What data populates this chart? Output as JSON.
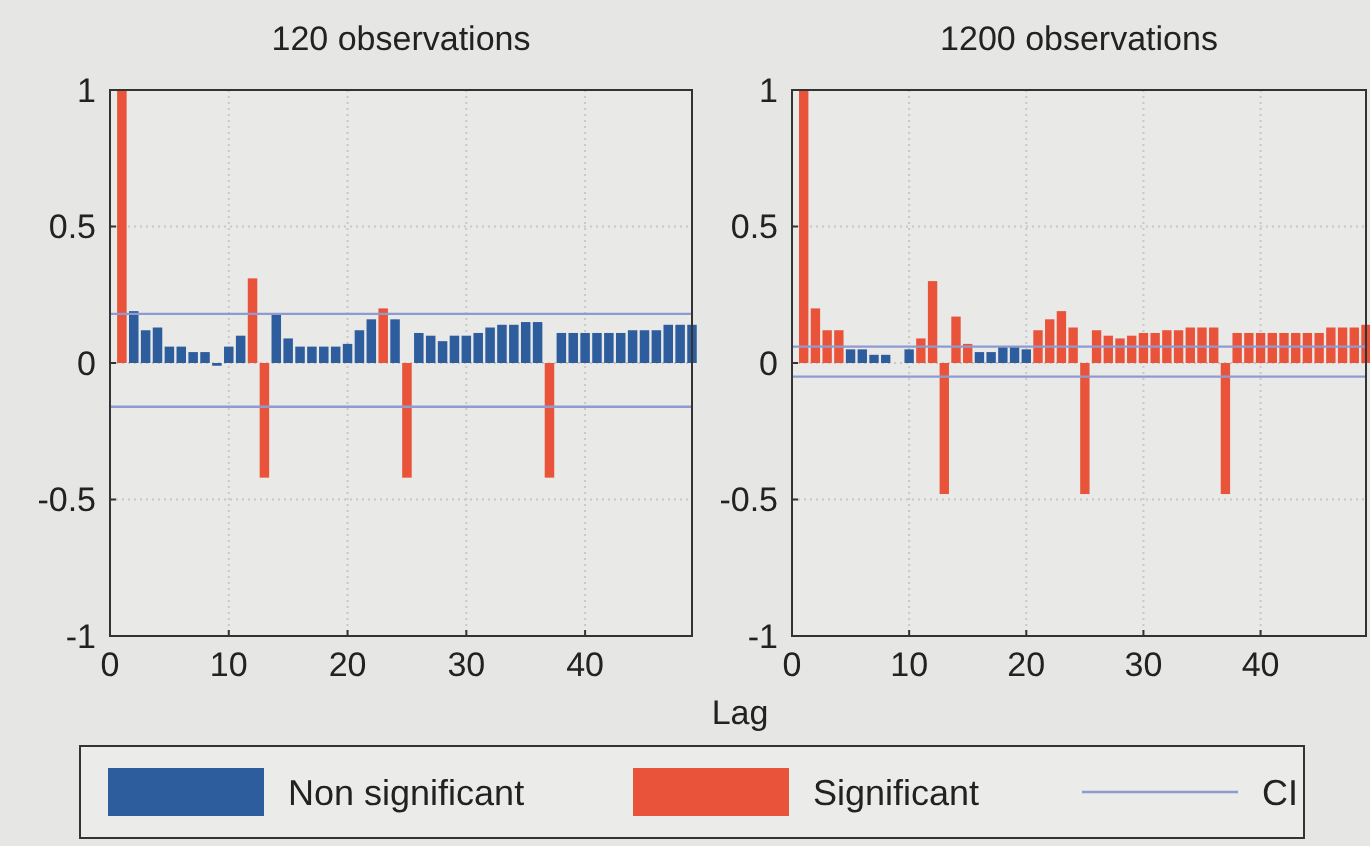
{
  "chart_data": [
    {
      "type": "bar",
      "title": "120 observations",
      "xlabel": "Lag",
      "x": [
        1,
        2,
        3,
        4,
        5,
        6,
        7,
        8,
        9,
        10,
        11,
        12,
        13,
        14,
        15,
        16,
        17,
        18,
        19,
        20,
        21,
        22,
        23,
        24,
        25,
        26,
        27,
        28,
        29,
        30,
        31,
        32,
        33,
        34,
        35,
        36,
        37,
        38,
        39,
        40,
        41,
        42,
        43,
        44,
        45,
        46,
        47,
        48,
        49
      ],
      "xlim": [
        0,
        49
      ],
      "xticks": [
        0,
        10,
        20,
        30,
        40
      ],
      "ylim": [
        -1,
        1
      ],
      "yticks": [
        -1,
        -0.5,
        0,
        0.5,
        1
      ],
      "grid": true,
      "legend": "bottom",
      "ref_lines": [
        {
          "axis": "y",
          "value": 0.18,
          "label": "CI",
          "color": "#8f9bd0"
        },
        {
          "axis": "y",
          "value": -0.16,
          "color": "#8f9bd0"
        }
      ],
      "series": [
        {
          "name": "Non significant",
          "color": "#2e5d9e",
          "values": [
            null,
            0.19,
            0.12,
            0.13,
            0.06,
            0.06,
            0.04,
            0.04,
            -0.01,
            0.06,
            0.1,
            null,
            null,
            0.18,
            0.09,
            0.06,
            0.06,
            0.06,
            0.06,
            0.07,
            0.12,
            0.16,
            null,
            0.16,
            null,
            0.11,
            0.1,
            0.08,
            0.1,
            0.1,
            0.11,
            0.13,
            0.14,
            0.14,
            0.15,
            0.15,
            null,
            0.11,
            0.11,
            0.11,
            0.11,
            0.11,
            0.11,
            0.12,
            0.12,
            0.12,
            0.14,
            0.14,
            0.14
          ]
        },
        {
          "name": "Significant",
          "color": "#e8533a",
          "values": [
            1,
            null,
            null,
            null,
            null,
            null,
            null,
            null,
            null,
            null,
            null,
            0.31,
            -0.42,
            null,
            null,
            null,
            null,
            null,
            null,
            null,
            null,
            null,
            0.2,
            null,
            -0.42,
            null,
            null,
            null,
            null,
            null,
            null,
            null,
            null,
            null,
            null,
            null,
            -0.42,
            null,
            null,
            null,
            null,
            null,
            null,
            null,
            null,
            null,
            null,
            null,
            null
          ]
        }
      ]
    },
    {
      "type": "bar",
      "title": "1200 observations",
      "x": [
        1,
        2,
        3,
        4,
        5,
        6,
        7,
        8,
        9,
        10,
        11,
        12,
        13,
        14,
        15,
        16,
        17,
        18,
        19,
        20,
        21,
        22,
        23,
        24,
        25,
        26,
        27,
        28,
        29,
        30,
        31,
        32,
        33,
        34,
        35,
        36,
        37,
        38,
        39,
        40,
        41,
        42,
        43,
        44,
        45,
        46,
        47,
        48,
        49
      ],
      "xlim": [
        0,
        49
      ],
      "xticks": [
        0,
        10,
        20,
        30,
        40
      ],
      "ylim": [
        -1,
        1
      ],
      "yticks": [
        -1,
        -0.5,
        0,
        0.5,
        1
      ],
      "grid": true,
      "ref_lines": [
        {
          "axis": "y",
          "value": 0.06,
          "color": "#8f9bd0"
        },
        {
          "axis": "y",
          "value": -0.05,
          "color": "#8f9bd0"
        }
      ],
      "series": [
        {
          "color": "#2e5d9e",
          "values": [
            null,
            null,
            null,
            null,
            0.05,
            0.05,
            0.03,
            0.03,
            0,
            0.05,
            null,
            null,
            null,
            null,
            null,
            0.04,
            0.04,
            0.06,
            0.06,
            0.05,
            null,
            null,
            null,
            null,
            null,
            null,
            null,
            null,
            null,
            null,
            null,
            null,
            null,
            null,
            null,
            null,
            null,
            null,
            null,
            null,
            null,
            null,
            null,
            null,
            null,
            null,
            null,
            null,
            null
          ]
        },
        {
          "color": "#e8533a",
          "values": [
            1,
            0.2,
            0.12,
            0.12,
            null,
            null,
            null,
            null,
            null,
            null,
            0.09,
            0.3,
            -0.48,
            0.17,
            0.07,
            null,
            null,
            null,
            null,
            null,
            0.12,
            0.16,
            0.19,
            0.13,
            -0.48,
            0.12,
            0.1,
            0.09,
            0.1,
            0.11,
            0.11,
            0.12,
            0.12,
            0.13,
            0.13,
            0.13,
            -0.48,
            0.11,
            0.11,
            0.11,
            0.11,
            0.11,
            0.11,
            0.11,
            0.11,
            0.13,
            0.13,
            0.13,
            0.14
          ]
        }
      ]
    }
  ]
}
